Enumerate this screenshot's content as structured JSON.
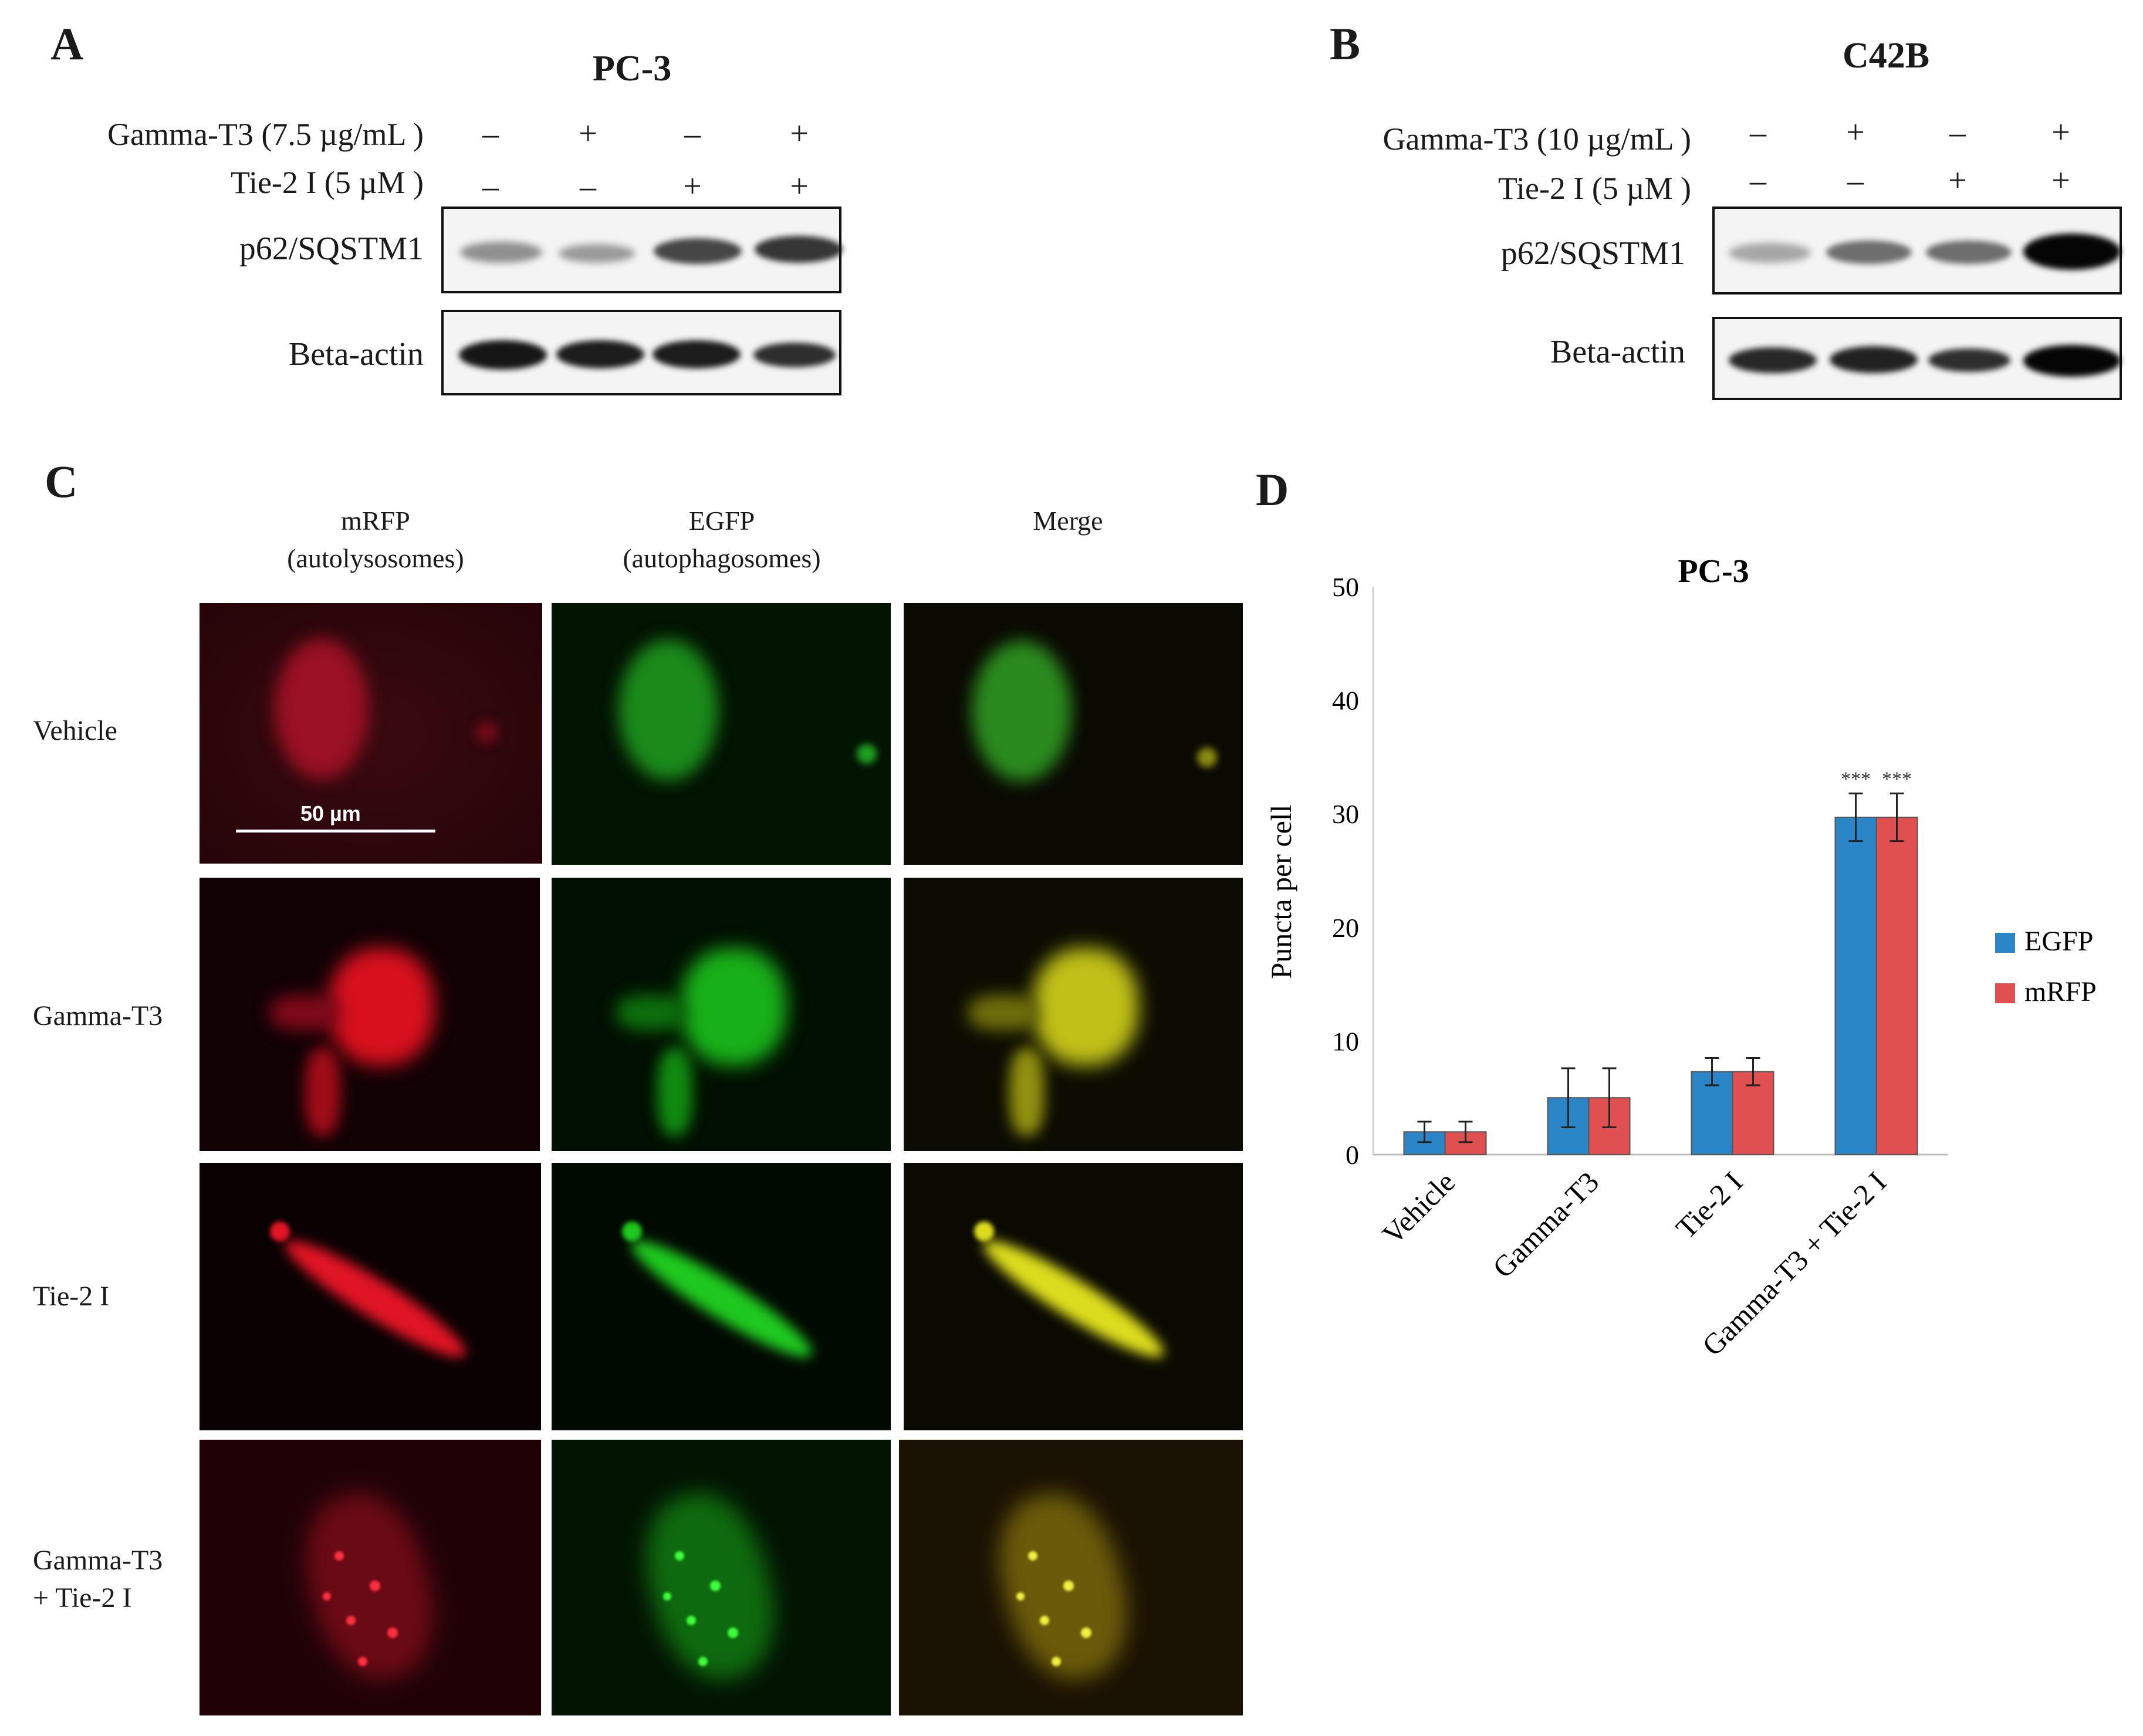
{
  "panelA": {
    "letter": "A",
    "cell_line": "PC-3",
    "treatments": [
      {
        "label": "Gamma-T3  (7.5 µg/mL )",
        "signs": [
          "–",
          "+",
          "–",
          "+"
        ]
      },
      {
        "label": "Tie-2  I (5 µM )",
        "signs": [
          "–",
          "–",
          "+",
          "+"
        ]
      }
    ],
    "blots": [
      {
        "label": "p62/SQSTM1",
        "band_intensity": [
          0.45,
          0.4,
          0.78,
          0.85
        ]
      },
      {
        "label": "Beta-actin",
        "band_intensity": [
          0.95,
          0.92,
          0.92,
          0.85
        ]
      }
    ]
  },
  "panelB": {
    "letter": "B",
    "cell_line": "C42B",
    "treatments": [
      {
        "label": "Gamma-T3  (10 µg/mL )",
        "signs": [
          "–",
          "+",
          "–",
          "+"
        ]
      },
      {
        "label": "Tie-2  I (5 µM )",
        "signs": [
          "–",
          "–",
          "+",
          "+"
        ]
      }
    ],
    "blots": [
      {
        "label": "p62/SQSTM1",
        "band_intensity": [
          0.35,
          0.6,
          0.6,
          1.0
        ]
      },
      {
        "label": "Beta-actin",
        "band_intensity": [
          0.88,
          0.9,
          0.85,
          1.0
        ]
      }
    ]
  },
  "panelC": {
    "letter": "C",
    "columns": [
      {
        "line1": "mRFP",
        "line2": "(autolysosomes)"
      },
      {
        "line1": "EGFP",
        "line2": "(autophagosomes)"
      },
      {
        "line1": "Merge",
        "line2": ""
      }
    ],
    "rows": [
      {
        "line1": "Vehicle",
        "line2": ""
      },
      {
        "line1": "Gamma-T3",
        "line2": ""
      },
      {
        "line1": "Tie-2  I",
        "line2": ""
      },
      {
        "line1": "Gamma-T3",
        "line2": "+ Tie-2  I"
      }
    ],
    "scale_bar": "50 µm",
    "colors": {
      "mrfp": "#e8142a",
      "egfp": "#1fc81f",
      "merge": "#c8c81e"
    }
  },
  "panelD": {
    "letter": "D",
    "chart_data": {
      "type": "bar",
      "title": "PC-3",
      "ylabel": "Puncta  per cell",
      "xlabel": "",
      "ylim": [
        0,
        50
      ],
      "yticks": [
        0,
        10,
        20,
        30,
        40,
        50
      ],
      "categories": [
        "Vehicle",
        "Gamma-T3",
        "Tie-2 I",
        "Gamma-T3 + Tie-2 I"
      ],
      "series": [
        {
          "name": "EGFP",
          "color": "#2b86c8",
          "values": [
            2.0,
            5.0,
            7.3,
            29.7
          ],
          "errors": [
            0.9,
            2.6,
            1.2,
            2.1
          ]
        },
        {
          "name": "mRFP",
          "color": "#e05050",
          "values": [
            2.0,
            5.0,
            7.3,
            29.7
          ],
          "errors": [
            0.9,
            2.6,
            1.2,
            2.1
          ]
        }
      ],
      "annotations": [
        {
          "category": "Gamma-T3 + Tie-2 I",
          "text": "***"
        }
      ],
      "grid": false,
      "legend": "right"
    }
  }
}
